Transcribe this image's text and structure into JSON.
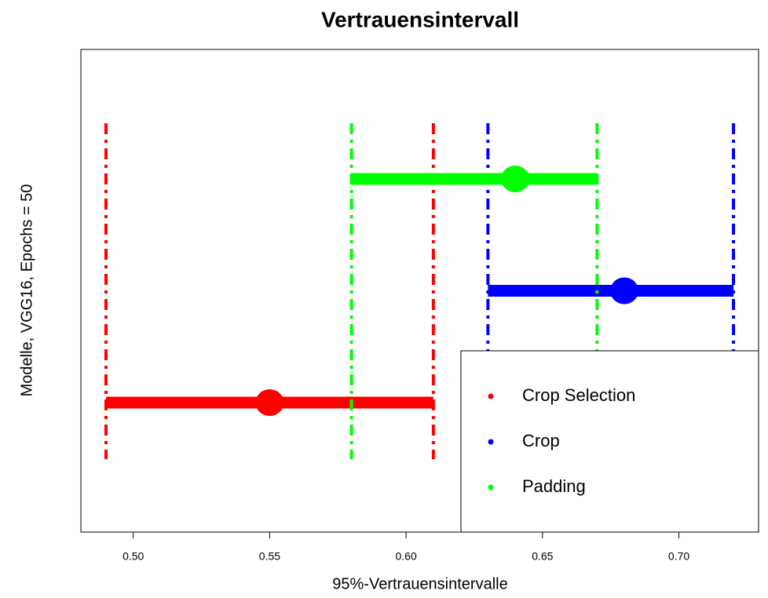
{
  "chart_data": {
    "type": "interval",
    "title": "Vertrauensintervall",
    "x_label": "95%-Vertrauensintervalle",
    "y_label": "Modelle, VGG16, Epochs = 50",
    "series": [
      {
        "name": "Crop Selection",
        "color": "#ff0000",
        "lower": 0.49,
        "estimate": 0.55,
        "upper": 0.61
      },
      {
        "name": "Crop",
        "color": "#0000ff",
        "lower": 0.63,
        "estimate": 0.68,
        "upper": 0.72
      },
      {
        "name": "Padding",
        "color": "#00ff00",
        "lower": 0.58,
        "estimate": 0.64,
        "upper": 0.67
      }
    ],
    "xlim": [
      0.4808,
      0.7292
    ],
    "xticks": [
      {
        "value": 0.5,
        "label": "0.50"
      },
      0.55,
      {
        "value": 0.6,
        "label": "0.60"
      },
      0.65,
      {
        "value": 0.7,
        "label": "0.70"
      }
    ],
    "legend": "bottom-right"
  }
}
